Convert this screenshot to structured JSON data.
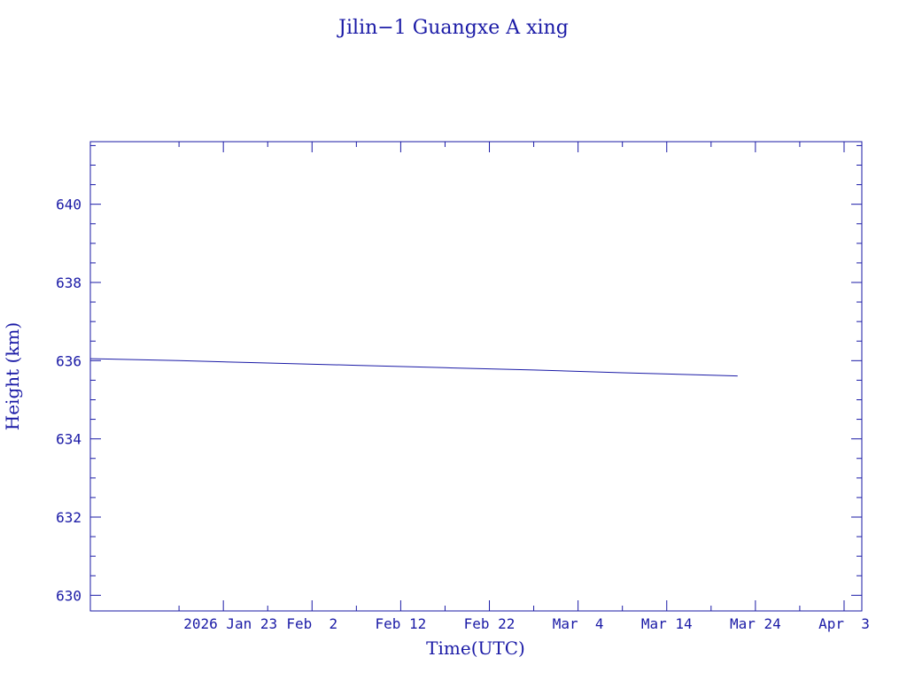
{
  "chart_data": {
    "type": "line",
    "title": "Jilin−1 Guangxe A xing",
    "xlabel": "Time(UTC)",
    "ylabel": "Height (km)",
    "x_axis_type": "date",
    "xlim": [
      "2026-01-08",
      "2026-04-05"
    ],
    "ylim": [
      629.6,
      641.6
    ],
    "yticks": [
      630,
      632,
      634,
      636,
      638,
      640
    ],
    "ytick_labels": [
      "630",
      "632",
      "634",
      "636",
      "638",
      "640"
    ],
    "xticks": [
      "2026-01-23",
      "2026-02-02",
      "2026-02-12",
      "2026-02-22",
      "2026-03-04",
      "2026-03-14",
      "2026-03-24",
      "2026-04-03"
    ],
    "xtick_labels": [
      "2026 Jan 23",
      "Feb  2",
      "Feb 12",
      "Feb 22",
      "Mar  4",
      "Mar 14",
      "Mar 24",
      "Apr  3"
    ],
    "grid": false,
    "color": "#1a1aa6",
    "series": [
      {
        "x": [
          "2026-01-08",
          "2026-01-18",
          "2026-01-28",
          "2026-02-07",
          "2026-02-17",
          "2026-02-27",
          "2026-03-09",
          "2026-03-19",
          "2026-03-22"
        ],
        "y": [
          636.05,
          636.0,
          635.94,
          635.88,
          635.82,
          635.76,
          635.69,
          635.63,
          635.61
        ]
      }
    ]
  }
}
